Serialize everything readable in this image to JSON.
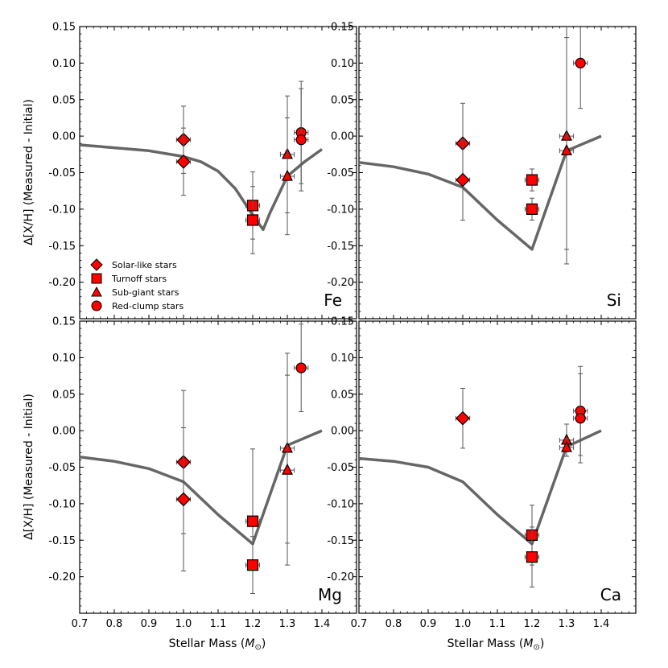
{
  "colors": {
    "marker_fill": "#ff0000",
    "marker_edge": "#000000",
    "model_line": "#666666",
    "errorbar": "#555555"
  },
  "axis_labels": {
    "y": "Δ[X/H] (Measured - Initial)",
    "x_prefix": "Stellar Mass (",
    "x_symbol": "M",
    "x_sub": "⊙",
    "x_suffix": ")"
  },
  "legend": [
    {
      "marker": "diamond",
      "label": "Solar-like stars"
    },
    {
      "marker": "square",
      "label": "Turnoff stars"
    },
    {
      "marker": "triangle",
      "label": "Sub-giant stars"
    },
    {
      "marker": "circle",
      "label": "Red-clump stars"
    }
  ],
  "chart_data": [
    {
      "type": "scatter",
      "element": "Fe",
      "xlim": [
        0.7,
        1.5
      ],
      "ylim": [
        -0.25,
        0.15
      ],
      "xticks": [
        0.7,
        0.8,
        0.9,
        1.0,
        1.1,
        1.2,
        1.3,
        1.4
      ],
      "yticks": [
        -0.2,
        -0.15,
        -0.1,
        -0.05,
        0.0,
        0.05,
        0.1,
        0.15
      ],
      "ytick_labels": [
        "-0.20",
        "-0.15",
        "-0.10",
        "-0.05",
        "0.00",
        "0.05",
        "0.10",
        "0.15"
      ],
      "model": {
        "x": [
          0.7,
          0.8,
          0.9,
          1.0,
          1.05,
          1.1,
          1.15,
          1.2,
          1.23,
          1.25,
          1.3,
          1.35,
          1.4
        ],
        "y": [
          -0.012,
          -0.016,
          -0.02,
          -0.028,
          -0.035,
          -0.048,
          -0.072,
          -0.108,
          -0.128,
          -0.105,
          -0.055,
          -0.035,
          -0.018
        ]
      },
      "points": [
        {
          "type": "diamond",
          "x": 1.0,
          "y": -0.005,
          "xerr": 0.02,
          "yerr": 0.046
        },
        {
          "type": "diamond",
          "x": 1.0,
          "y": -0.035,
          "xerr": 0.02,
          "yerr": 0.046
        },
        {
          "type": "square",
          "x": 1.2,
          "y": -0.095,
          "xerr": 0.02,
          "yerr": 0.046
        },
        {
          "type": "square",
          "x": 1.2,
          "y": -0.115,
          "xerr": 0.02,
          "yerr": 0.046
        },
        {
          "type": "triangle",
          "x": 1.3,
          "y": -0.025,
          "xerr": 0.02,
          "yerr": 0.08
        },
        {
          "type": "triangle",
          "x": 1.3,
          "y": -0.055,
          "xerr": 0.02,
          "yerr": 0.08
        },
        {
          "type": "circle",
          "x": 1.34,
          "y": 0.005,
          "xerr": 0.02,
          "yerr": 0.07
        },
        {
          "type": "circle",
          "x": 1.34,
          "y": -0.005,
          "xerr": 0.02,
          "yerr": 0.07
        }
      ]
    },
    {
      "type": "scatter",
      "element": "Si",
      "xlim": [
        0.7,
        1.5
      ],
      "ylim": [
        -0.25,
        0.15
      ],
      "xticks": [
        0.7,
        0.8,
        0.9,
        1.0,
        1.1,
        1.2,
        1.3,
        1.4
      ],
      "yticks": [
        -0.2,
        -0.15,
        -0.1,
        -0.05,
        0.0,
        0.05,
        0.1,
        0.15
      ],
      "ytick_labels": [
        "-0.20",
        "-0.15",
        "-0.10",
        "-0.05",
        "0.00",
        "0.05",
        "0.10",
        "0.15"
      ],
      "model": {
        "x": [
          0.7,
          0.8,
          0.9,
          1.0,
          1.1,
          1.2,
          1.3,
          1.4
        ],
        "y": [
          -0.036,
          -0.042,
          -0.052,
          -0.07,
          -0.115,
          -0.155,
          -0.02,
          0.0
        ]
      },
      "points": [
        {
          "type": "diamond",
          "x": 1.0,
          "y": -0.01,
          "xerr": 0.02,
          "yerr": 0.055
        },
        {
          "type": "diamond",
          "x": 1.0,
          "y": -0.06,
          "xerr": 0.02,
          "yerr": 0.055
        },
        {
          "type": "square",
          "x": 1.2,
          "y": -0.06,
          "xerr": 0.02,
          "yerr": 0.015
        },
        {
          "type": "square",
          "x": 1.2,
          "y": -0.1,
          "xerr": 0.02,
          "yerr": 0.015
        },
        {
          "type": "triangle",
          "x": 1.3,
          "y": 0.0,
          "xerr": 0.02,
          "yerr": 0.155
        },
        {
          "type": "triangle",
          "x": 1.3,
          "y": -0.02,
          "xerr": 0.02,
          "yerr": 0.155
        },
        {
          "type": "circle",
          "x": 1.34,
          "y": 0.1,
          "xerr": 0.02,
          "yerr": 0.062
        }
      ]
    },
    {
      "type": "scatter",
      "element": "Mg",
      "xlim": [
        0.7,
        1.5
      ],
      "ylim": [
        -0.25,
        0.15
      ],
      "xticks": [
        0.7,
        0.8,
        0.9,
        1.0,
        1.1,
        1.2,
        1.3,
        1.4
      ],
      "yticks": [
        -0.2,
        -0.15,
        -0.1,
        -0.05,
        0.0,
        0.05,
        0.1,
        0.15
      ],
      "ytick_labels": [
        "-0.20",
        "-0.15",
        "-0.10",
        "-0.05",
        "0.00",
        "0.05",
        "0.10",
        "0.15"
      ],
      "model": {
        "x": [
          0.7,
          0.8,
          0.9,
          1.0,
          1.1,
          1.2,
          1.3,
          1.4
        ],
        "y": [
          -0.036,
          -0.042,
          -0.052,
          -0.07,
          -0.115,
          -0.155,
          -0.02,
          0.0
        ]
      },
      "points": [
        {
          "type": "diamond",
          "x": 1.0,
          "y": -0.043,
          "xerr": 0.02,
          "yerr": 0.098
        },
        {
          "type": "diamond",
          "x": 1.0,
          "y": -0.094,
          "xerr": 0.02,
          "yerr": 0.098
        },
        {
          "type": "square",
          "x": 1.2,
          "y": -0.124,
          "xerr": 0.02,
          "yerr": 0.099
        },
        {
          "type": "square",
          "x": 1.2,
          "y": -0.184,
          "xerr": 0.02,
          "yerr": 0.039
        },
        {
          "type": "triangle",
          "x": 1.3,
          "y": -0.024,
          "xerr": 0.02,
          "yerr": 0.13
        },
        {
          "type": "triangle",
          "x": 1.3,
          "y": -0.054,
          "xerr": 0.02,
          "yerr": 0.13
        },
        {
          "type": "circle",
          "x": 1.34,
          "y": 0.086,
          "xerr": 0.02,
          "yerr": 0.06
        }
      ]
    },
    {
      "type": "scatter",
      "element": "Ca",
      "xlim": [
        0.7,
        1.5
      ],
      "ylim": [
        -0.25,
        0.15
      ],
      "xticks": [
        0.7,
        0.8,
        0.9,
        1.0,
        1.1,
        1.2,
        1.3,
        1.4
      ],
      "yticks": [
        -0.2,
        -0.15,
        -0.1,
        -0.05,
        0.0,
        0.05,
        0.1,
        0.15
      ],
      "ytick_labels": [
        "-0.20",
        "-0.15",
        "-0.10",
        "-0.05",
        "0.00",
        "0.05",
        "0.10",
        "0.15"
      ],
      "model": {
        "x": [
          0.7,
          0.8,
          0.9,
          1.0,
          1.1,
          1.2,
          1.3,
          1.4
        ],
        "y": [
          -0.038,
          -0.042,
          -0.05,
          -0.07,
          -0.115,
          -0.155,
          -0.022,
          0.0
        ]
      },
      "points": [
        {
          "type": "diamond",
          "x": 1.0,
          "y": 0.017,
          "xerr": 0.02,
          "yerr": 0.041
        },
        {
          "type": "square",
          "x": 1.2,
          "y": -0.143,
          "xerr": 0.02,
          "yerr": 0.041
        },
        {
          "type": "square",
          "x": 1.2,
          "y": -0.173,
          "xerr": 0.02,
          "yerr": 0.041
        },
        {
          "type": "triangle",
          "x": 1.3,
          "y": -0.013,
          "xerr": 0.02,
          "yerr": 0.022
        },
        {
          "type": "triangle",
          "x": 1.3,
          "y": -0.023,
          "xerr": 0.02,
          "yerr": 0.012
        },
        {
          "type": "circle",
          "x": 1.34,
          "y": 0.027,
          "xerr": 0.02,
          "yerr": 0.061
        },
        {
          "type": "circle",
          "x": 1.34,
          "y": 0.017,
          "xerr": 0.02,
          "yerr": 0.061
        }
      ]
    }
  ]
}
